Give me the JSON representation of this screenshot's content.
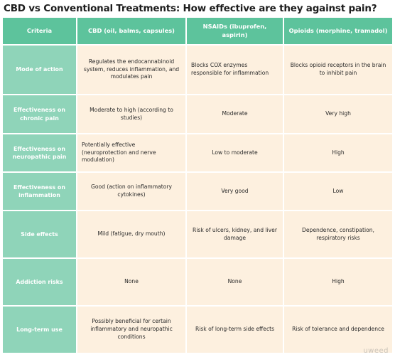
{
  "title": "CBD vs Conventional Treatments: How effective are they against pain?",
  "table": {
    "headers": [
      "Criteria",
      "CBD (oil, balms, capsules)",
      "NSAIDs (ibuprofen, aspirin)",
      "Opioids (morphine, tramadol)"
    ],
    "rows": [
      [
        "Mode of action",
        "Regulates the endocannabinoid system, reduces inflammation, and modulates pain",
        "Blocks COX enzymes responsible for inflammation",
        "Blocks opioid receptors in the brain to inhibit pain"
      ],
      [
        "Effectiveness on chronic pain",
        "Moderate to high (according to studies)",
        "Moderate",
        "Very high"
      ],
      [
        "Effectiveness on neuropathic pain",
        "Potentially effective (neuroprotection and nerve modulation)",
        "Low to moderate",
        "High"
      ],
      [
        "Effectiveness on inflammation",
        "Good (action on inflammatory cytokines)",
        "Very good",
        "Low"
      ],
      [
        "Side effects",
        "Mild (fatigue, dry mouth)",
        "Risk of ulcers, kidney, and liver damage",
        "Dependence, constipation, respiratory risks"
      ],
      [
        "Addiction risks",
        "None",
        "None",
        "High"
      ],
      [
        "Long-term use",
        "Possibly beneficial for certain inflammatory and neuropathic conditions",
        "Risk of long-term side effects",
        "Risk of tolerance and dependence"
      ]
    ]
  },
  "logo": "uweed",
  "colors": {
    "header_bg": "#5dc39c",
    "criteria_bg": "#8fd4b9",
    "cell_bg": "#fdf0df"
  }
}
